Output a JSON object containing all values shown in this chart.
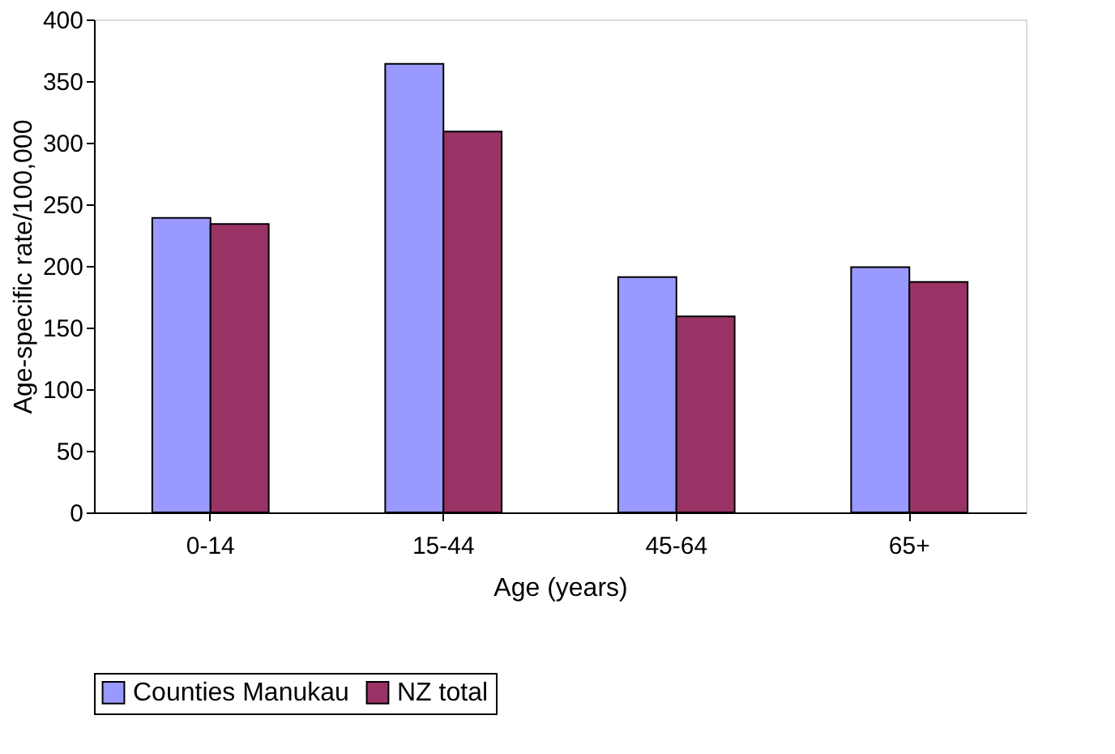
{
  "chart_data": {
    "type": "bar",
    "xlabel": "Age (years)",
    "ylabel": "Age-specific rate/100,000",
    "categories": [
      "0-14",
      "15-44",
      "45-64",
      "65+"
    ],
    "series": [
      {
        "name": "Counties Manukau",
        "color": "#9999ff",
        "values": [
          239,
          364,
          191,
          199
        ]
      },
      {
        "name": "NZ total",
        "color": "#993366",
        "values": [
          234,
          309,
          159,
          187
        ]
      }
    ],
    "ylim": [
      0,
      400
    ],
    "yticks": [
      0,
      50,
      100,
      150,
      200,
      250,
      300,
      350,
      400
    ],
    "grid": false,
    "legend": "bottom"
  }
}
